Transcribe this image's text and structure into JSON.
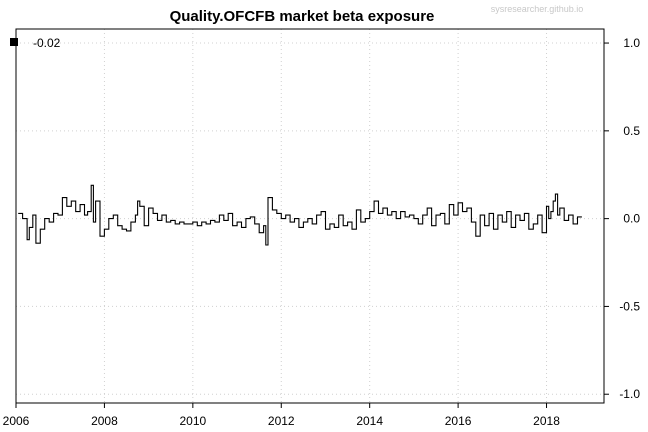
{
  "watermark": "sysresearcher.github.io",
  "chart_data": {
    "type": "line",
    "title": "Quality.OFCFB market beta exposure",
    "xlabel": "",
    "ylabel": "",
    "xlim": [
      2006.0,
      2019.3
    ],
    "ylim": [
      -1.05,
      1.08
    ],
    "x_ticks": [
      2006,
      2008,
      2010,
      2012,
      2014,
      2016,
      2018
    ],
    "x_tick_labels": [
      "2006",
      "2008",
      "2010",
      "2012",
      "2014",
      "2016",
      "2018"
    ],
    "y_ticks": [
      1.0,
      0.5,
      0.0,
      -0.5,
      -1.0
    ],
    "y_tick_labels": [
      "1.0",
      "0.5",
      "0.0",
      "-0.5",
      "-1.0"
    ],
    "y_axis_side": "right",
    "grid": true,
    "legend": {
      "position": "top-left",
      "label": "-0.02"
    },
    "series": [
      {
        "color": "#000000",
        "x": [
          2006.05,
          2006.15,
          2006.25,
          2006.3,
          2006.38,
          2006.45,
          2006.55,
          2006.65,
          2006.75,
          2006.85,
          2006.95,
          2007.05,
          2007.15,
          2007.25,
          2007.35,
          2007.45,
          2007.55,
          2007.62,
          2007.7,
          2007.75,
          2007.8,
          2007.9,
          2008.0,
          2008.1,
          2008.2,
          2008.3,
          2008.4,
          2008.5,
          2008.6,
          2008.7,
          2008.75,
          2008.8,
          2008.9,
          2009.0,
          2009.1,
          2009.2,
          2009.3,
          2009.4,
          2009.5,
          2009.6,
          2009.7,
          2009.8,
          2009.9,
          2010.0,
          2010.1,
          2010.2,
          2010.3,
          2010.4,
          2010.5,
          2010.6,
          2010.7,
          2010.8,
          2010.9,
          2011.0,
          2011.1,
          2011.2,
          2011.3,
          2011.4,
          2011.5,
          2011.6,
          2011.65,
          2011.7,
          2011.8,
          2011.9,
          2012.0,
          2012.1,
          2012.2,
          2012.3,
          2012.4,
          2012.5,
          2012.6,
          2012.7,
          2012.8,
          2012.9,
          2013.0,
          2013.1,
          2013.2,
          2013.3,
          2013.4,
          2013.5,
          2013.6,
          2013.7,
          2013.8,
          2013.9,
          2014.0,
          2014.1,
          2014.2,
          2014.3,
          2014.4,
          2014.5,
          2014.6,
          2014.7,
          2014.8,
          2014.9,
          2015.0,
          2015.1,
          2015.2,
          2015.3,
          2015.4,
          2015.5,
          2015.6,
          2015.7,
          2015.8,
          2015.9,
          2016.0,
          2016.1,
          2016.2,
          2016.3,
          2016.4,
          2016.5,
          2016.6,
          2016.7,
          2016.8,
          2016.9,
          2017.0,
          2017.1,
          2017.2,
          2017.3,
          2017.4,
          2017.5,
          2017.6,
          2017.7,
          2017.8,
          2017.9,
          2018.0,
          2018.05,
          2018.1,
          2018.15,
          2018.2,
          2018.25,
          2018.3,
          2018.4,
          2018.5,
          2018.6,
          2018.7,
          2018.8
        ],
        "y": [
          0.03,
          0.0,
          -0.12,
          -0.05,
          0.02,
          -0.14,
          -0.06,
          0.0,
          -0.02,
          0.03,
          0.02,
          0.12,
          0.07,
          0.1,
          0.04,
          0.08,
          0.02,
          0.04,
          0.19,
          -0.02,
          0.1,
          -0.1,
          -0.06,
          0.0,
          0.02,
          -0.04,
          -0.06,
          -0.07,
          -0.02,
          0.02,
          0.1,
          0.07,
          -0.04,
          0.06,
          0.03,
          -0.01,
          0.02,
          -0.02,
          -0.01,
          -0.03,
          -0.02,
          -0.03,
          -0.03,
          -0.02,
          -0.04,
          -0.02,
          -0.03,
          -0.01,
          -0.02,
          0.02,
          -0.01,
          0.03,
          -0.04,
          -0.02,
          -0.05,
          0.0,
          0.01,
          -0.03,
          -0.08,
          -0.04,
          -0.15,
          0.12,
          0.05,
          0.03,
          0.0,
          0.02,
          -0.02,
          0.0,
          -0.05,
          -0.02,
          0.0,
          -0.03,
          0.02,
          0.04,
          -0.06,
          -0.03,
          -0.05,
          0.02,
          -0.04,
          -0.02,
          -0.06,
          0.05,
          -0.02,
          0.0,
          0.04,
          0.1,
          0.03,
          0.06,
          0.02,
          0.04,
          0.0,
          0.04,
          0.01,
          0.02,
          0.0,
          -0.03,
          0.02,
          0.06,
          -0.04,
          0.02,
          0.03,
          -0.03,
          0.08,
          0.02,
          0.09,
          0.04,
          0.06,
          -0.02,
          -0.1,
          0.02,
          -0.04,
          0.03,
          -0.06,
          0.02,
          -0.02,
          0.04,
          -0.05,
          0.02,
          -0.01,
          0.03,
          -0.06,
          -0.03,
          0.02,
          -0.08,
          0.07,
          0.0,
          0.04,
          0.1,
          0.14,
          0.02,
          0.06,
          -0.01,
          0.02,
          -0.03,
          0.01,
          0.01
        ]
      }
    ]
  }
}
